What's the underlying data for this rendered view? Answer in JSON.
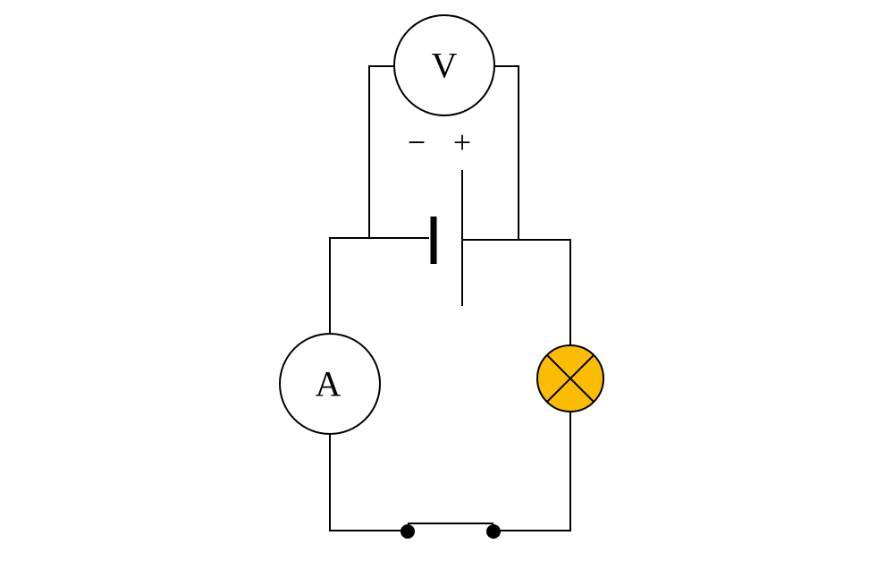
{
  "voltmeter": {
    "label": "V"
  },
  "ammeter": {
    "label": "A"
  },
  "battery": {
    "negative_sign": "−",
    "positive_sign": "+"
  },
  "colors": {
    "wire": "#000000",
    "meter_fill": "#ffffff",
    "lamp_fill": "#fbbc05"
  }
}
